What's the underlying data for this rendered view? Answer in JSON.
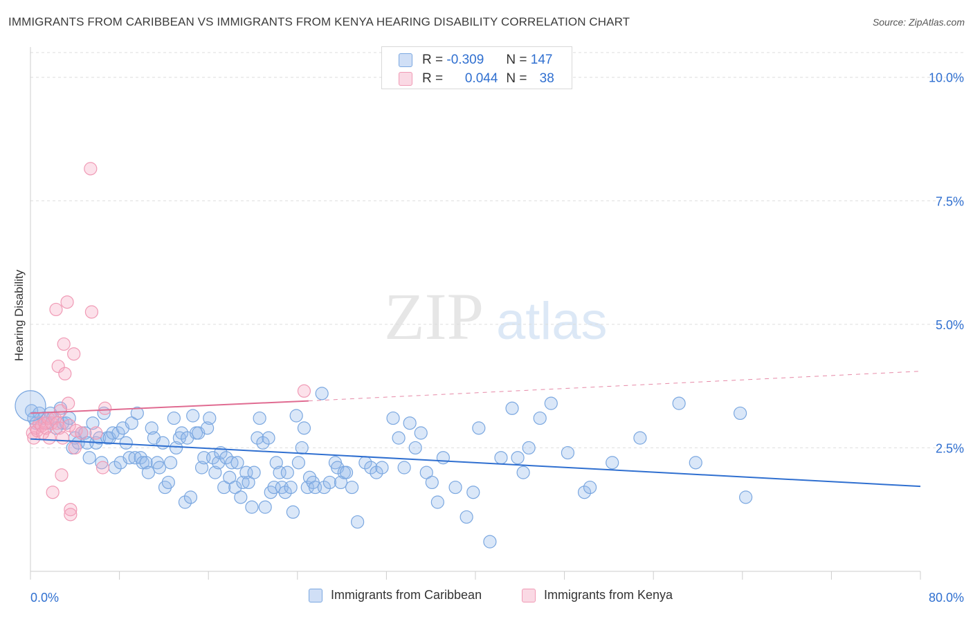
{
  "chart_data": {
    "type": "scatter",
    "title": "IMMIGRANTS FROM CARIBBEAN VS IMMIGRANTS FROM KENYA HEARING DISABILITY CORRELATION CHART",
    "source": "Source: ZipAtlas.com",
    "xlabel": "",
    "ylabel": "Hearing Disability",
    "xlim": [
      0,
      80
    ],
    "ylim": [
      0,
      10.5
    ],
    "x_tick_labels": [
      "0.0%",
      "80.0%"
    ],
    "y_ticks": [
      2.5,
      5.0,
      7.5,
      10.0
    ],
    "y_tick_labels": [
      "2.5%",
      "5.0%",
      "7.5%",
      "10.0%"
    ],
    "grid": "horizontal dashed",
    "watermark": "ZIPatlas",
    "legend": {
      "position": "top-center",
      "rows": [
        {
          "r_label": "R =",
          "r_value": "-0.309",
          "n_label": "N =",
          "n_value": "147"
        },
        {
          "r_label": "R =",
          "r_value": "0.044",
          "n_label": "N =",
          "n_value": "38"
        }
      ]
    },
    "series": [
      {
        "name": "Immigrants from Caribbean",
        "color": "#7aa7e0",
        "fill": "rgba(150,185,235,0.35)",
        "trend_color": "#2f6fd0",
        "trend": {
          "x0": 0,
          "y0": 2.68,
          "x1": 80,
          "y1": 1.72
        },
        "points": [
          [
            0.1,
            3.25
          ],
          [
            0.3,
            3.1
          ],
          [
            0.5,
            3.0
          ],
          [
            0.8,
            3.2
          ],
          [
            1.2,
            3.1
          ],
          [
            1.5,
            3.0
          ],
          [
            1.8,
            3.2
          ],
          [
            2.0,
            3.1
          ],
          [
            2.3,
            2.9
          ],
          [
            2.7,
            3.3
          ],
          [
            2.9,
            3.0
          ],
          [
            3.2,
            3.0
          ],
          [
            3.5,
            3.1
          ],
          [
            3.8,
            2.5
          ],
          [
            4.0,
            2.7
          ],
          [
            4.3,
            2.6
          ],
          [
            4.6,
            2.8
          ],
          [
            4.9,
            2.8
          ],
          [
            5.1,
            2.6
          ],
          [
            5.3,
            2.3
          ],
          [
            5.6,
            3.0
          ],
          [
            5.9,
            2.6
          ],
          [
            6.2,
            2.7
          ],
          [
            6.4,
            2.2
          ],
          [
            6.6,
            3.2
          ],
          [
            6.9,
            2.7
          ],
          [
            7.1,
            2.7
          ],
          [
            7.4,
            2.8
          ],
          [
            7.6,
            2.1
          ],
          [
            7.9,
            2.8
          ],
          [
            8.1,
            2.2
          ],
          [
            8.3,
            2.9
          ],
          [
            8.6,
            2.6
          ],
          [
            8.9,
            2.3
          ],
          [
            9.1,
            3.0
          ],
          [
            9.4,
            2.3
          ],
          [
            9.6,
            3.2
          ],
          [
            9.9,
            2.3
          ],
          [
            10.1,
            2.2
          ],
          [
            10.4,
            2.2
          ],
          [
            10.6,
            2.0
          ],
          [
            10.9,
            2.9
          ],
          [
            11.1,
            2.7
          ],
          [
            11.4,
            2.2
          ],
          [
            11.6,
            2.1
          ],
          [
            11.9,
            2.6
          ],
          [
            12.1,
            1.7
          ],
          [
            12.4,
            1.8
          ],
          [
            12.6,
            2.2
          ],
          [
            12.9,
            3.1
          ],
          [
            13.1,
            2.5
          ],
          [
            13.4,
            2.7
          ],
          [
            13.6,
            2.8
          ],
          [
            13.9,
            1.4
          ],
          [
            14.1,
            2.7
          ],
          [
            14.4,
            1.5
          ],
          [
            14.6,
            3.15
          ],
          [
            14.9,
            2.8
          ],
          [
            15.1,
            2.8
          ],
          [
            15.4,
            2.1
          ],
          [
            15.6,
            2.3
          ],
          [
            15.9,
            2.9
          ],
          [
            16.1,
            3.1
          ],
          [
            16.4,
            2.3
          ],
          [
            16.6,
            2.0
          ],
          [
            16.9,
            2.2
          ],
          [
            17.1,
            2.4
          ],
          [
            17.4,
            1.7
          ],
          [
            17.6,
            2.3
          ],
          [
            17.9,
            1.9
          ],
          [
            18.1,
            2.2
          ],
          [
            18.4,
            1.7
          ],
          [
            18.6,
            2.2
          ],
          [
            18.9,
            1.5
          ],
          [
            19.1,
            1.8
          ],
          [
            19.4,
            2.0
          ],
          [
            19.6,
            1.8
          ],
          [
            19.9,
            1.3
          ],
          [
            20.1,
            2.0
          ],
          [
            20.4,
            2.7
          ],
          [
            20.6,
            3.1
          ],
          [
            20.9,
            2.6
          ],
          [
            21.1,
            1.3
          ],
          [
            21.4,
            2.7
          ],
          [
            21.6,
            1.6
          ],
          [
            21.9,
            1.7
          ],
          [
            22.1,
            2.2
          ],
          [
            22.4,
            2.0
          ],
          [
            22.6,
            1.7
          ],
          [
            22.9,
            1.6
          ],
          [
            23.1,
            2.0
          ],
          [
            23.4,
            1.7
          ],
          [
            23.6,
            1.2
          ],
          [
            23.9,
            3.15
          ],
          [
            24.1,
            2.2
          ],
          [
            24.4,
            2.5
          ],
          [
            24.6,
            2.9
          ],
          [
            24.9,
            1.7
          ],
          [
            25.1,
            1.9
          ],
          [
            25.4,
            1.8
          ],
          [
            25.6,
            1.7
          ],
          [
            26.2,
            3.6
          ],
          [
            26.4,
            1.7
          ],
          [
            26.9,
            1.8
          ],
          [
            27.4,
            2.2
          ],
          [
            27.6,
            2.1
          ],
          [
            27.9,
            1.8
          ],
          [
            28.2,
            2.0
          ],
          [
            28.4,
            2.0
          ],
          [
            28.9,
            1.7
          ],
          [
            29.4,
            1.0
          ],
          [
            30.1,
            2.2
          ],
          [
            30.6,
            2.1
          ],
          [
            31.1,
            2.0
          ],
          [
            31.6,
            2.1
          ],
          [
            32.6,
            3.1
          ],
          [
            33.1,
            2.7
          ],
          [
            33.6,
            2.1
          ],
          [
            34.1,
            3.0
          ],
          [
            34.6,
            2.5
          ],
          [
            35.1,
            2.8
          ],
          [
            35.6,
            2.0
          ],
          [
            36.1,
            1.8
          ],
          [
            36.6,
            1.4
          ],
          [
            37.1,
            2.3
          ],
          [
            38.2,
            1.7
          ],
          [
            39.2,
            1.1
          ],
          [
            39.8,
            1.6
          ],
          [
            40.3,
            2.9
          ],
          [
            41.3,
            0.6
          ],
          [
            42.3,
            2.3
          ],
          [
            43.3,
            3.3
          ],
          [
            43.8,
            2.3
          ],
          [
            44.3,
            2.0
          ],
          [
            44.8,
            2.5
          ],
          [
            45.8,
            3.1
          ],
          [
            46.8,
            3.4
          ],
          [
            48.3,
            2.4
          ],
          [
            49.8,
            1.6
          ],
          [
            50.3,
            1.7
          ],
          [
            52.3,
            2.2
          ],
          [
            54.8,
            2.7
          ],
          [
            58.3,
            3.4
          ],
          [
            59.8,
            2.2
          ],
          [
            63.8,
            3.2
          ],
          [
            64.3,
            1.5
          ]
        ]
      },
      {
        "name": "Immigrants from Kenya",
        "color": "#f09ab5",
        "fill": "rgba(245,170,195,0.35)",
        "trend_color": "#e06b91",
        "trend": {
          "x0": 0,
          "y0": 3.2,
          "x1": 25,
          "y1": 3.45,
          "dashed_to_x": 80,
          "dashed_to_y": 4.05
        },
        "points": [
          [
            0.2,
            2.8
          ],
          [
            0.3,
            2.7
          ],
          [
            0.5,
            2.9
          ],
          [
            0.6,
            2.85
          ],
          [
            0.8,
            3.0
          ],
          [
            1.0,
            2.95
          ],
          [
            1.1,
            2.8
          ],
          [
            1.3,
            3.0
          ],
          [
            1.4,
            2.9
          ],
          [
            1.6,
            3.1
          ],
          [
            1.7,
            2.7
          ],
          [
            1.9,
            3.0
          ],
          [
            2.0,
            1.6
          ],
          [
            2.2,
            3.1
          ],
          [
            2.3,
            5.3
          ],
          [
            2.4,
            3.0
          ],
          [
            2.5,
            4.15
          ],
          [
            2.6,
            2.9
          ],
          [
            2.7,
            3.25
          ],
          [
            2.8,
            1.95
          ],
          [
            2.9,
            2.7
          ],
          [
            3.0,
            4.6
          ],
          [
            3.1,
            4.0
          ],
          [
            3.3,
            5.45
          ],
          [
            3.4,
            3.4
          ],
          [
            3.5,
            2.95
          ],
          [
            3.6,
            1.25
          ],
          [
            3.6,
            1.15
          ],
          [
            3.9,
            4.4
          ],
          [
            4.0,
            2.5
          ],
          [
            4.1,
            2.85
          ],
          [
            4.6,
            2.8
          ],
          [
            5.4,
            8.15
          ],
          [
            5.5,
            5.25
          ],
          [
            5.9,
            2.8
          ],
          [
            6.5,
            2.1
          ],
          [
            6.7,
            3.3
          ],
          [
            24.6,
            3.65
          ]
        ]
      }
    ]
  },
  "legend_bottom": [
    {
      "label": "Immigrants from Caribbean"
    },
    {
      "label": "Immigrants from Kenya"
    }
  ]
}
